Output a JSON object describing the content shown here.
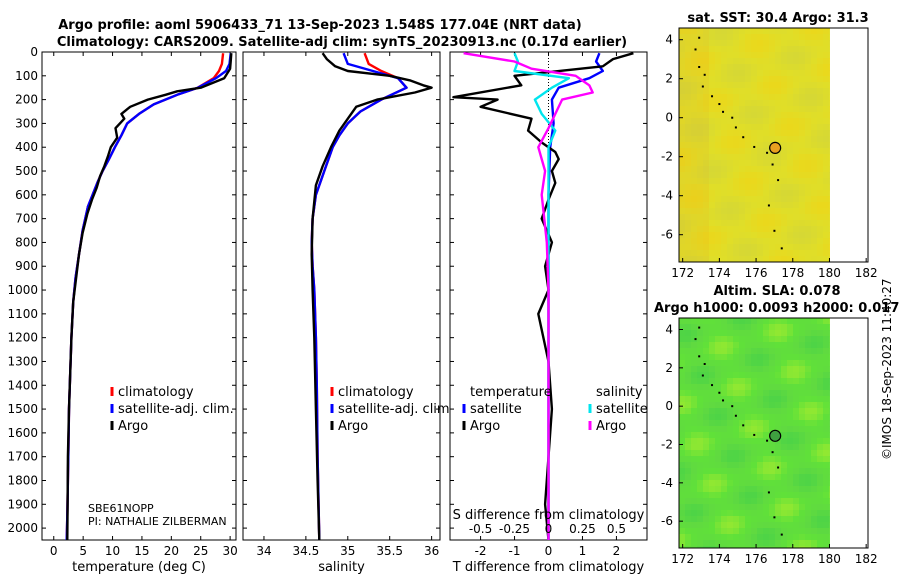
{
  "title": {
    "line1": "Argo profile: aoml 5906433_71 13-Sep-2023 1.548S 177.04E (NRT data)",
    "line2": "Climatology: CARS2009. Satellite-adj clim: synTS_20230913.nc (0.17d earlier)"
  },
  "colors": {
    "climatology": "#ff0000",
    "satellite_adj": "#0000ff",
    "argo": "#000000",
    "satellite_sal": "#00e5ee",
    "argo_sal": "#ff00ff",
    "sst_field": "#e0e020",
    "sla_field": "#66e03a"
  },
  "watermark": "©IMOS 18-Sep-2023 11:40:27",
  "chart_data": [
    {
      "type": "line",
      "name": "temperature-profile",
      "xlabel": "temperature (deg C)",
      "ylabel": "",
      "xlim": [
        -2,
        31
      ],
      "ylim": [
        0,
        2050
      ],
      "y_reversed": true,
      "xticks": [
        0,
        5,
        10,
        15,
        20,
        25,
        30
      ],
      "yticks": [
        0,
        100,
        200,
        300,
        400,
        500,
        600,
        700,
        800,
        900,
        1000,
        1100,
        1200,
        1300,
        1400,
        1500,
        1600,
        1700,
        1800,
        1900,
        2000
      ],
      "legend": [
        "climatology",
        "satellite-adj. clim.",
        "Argo"
      ],
      "annotation": [
        "SBE61NOPP",
        "PI: NATHALIE ZILBERMAN"
      ],
      "series": [
        {
          "name": "climatology",
          "color_key": "climatology",
          "x": [
            28.8,
            28.6,
            28.1,
            27.2,
            24.5,
            21.0,
            17.0,
            14.5,
            12.5,
            11.5,
            10.4,
            9.4,
            8.3,
            7.4,
            6.6,
            5.8,
            4.9,
            4.3,
            3.7,
            3.3,
            3.0,
            2.8,
            2.6,
            2.5,
            2.4,
            2.3,
            2.2
          ],
          "y": [
            5,
            50,
            80,
            110,
            150,
            180,
            220,
            260,
            300,
            350,
            400,
            450,
            500,
            550,
            600,
            650,
            750,
            850,
            950,
            1050,
            1200,
            1350,
            1500,
            1650,
            1800,
            1950,
            2050
          ]
        },
        {
          "name": "satellite-adj. clim.",
          "color_key": "satellite_adj",
          "x": [
            30.1,
            29.9,
            29.3,
            27.6,
            24.5,
            21.0,
            17.0,
            14.5,
            12.5,
            11.5,
            10.4,
            9.4,
            8.3,
            7.4,
            6.6,
            5.8,
            4.9,
            4.3,
            3.7,
            3.3,
            3.0,
            2.8,
            2.6,
            2.5,
            2.4,
            2.3,
            2.2
          ],
          "y": [
            5,
            50,
            80,
            110,
            150,
            180,
            220,
            260,
            300,
            350,
            400,
            450,
            500,
            550,
            600,
            650,
            750,
            850,
            950,
            1050,
            1200,
            1350,
            1500,
            1650,
            1800,
            1950,
            2050
          ]
        },
        {
          "name": "Argo",
          "color_key": "argo",
          "x": [
            30.2,
            30.1,
            30.0,
            29.0,
            25.0,
            21.0,
            19.0,
            16.0,
            13.0,
            11.5,
            12.0,
            10.5,
            10.8,
            9.7,
            9.2,
            8.6,
            7.9,
            7.3,
            6.5,
            5.7,
            4.9,
            4.3,
            3.8,
            3.3,
            3.0,
            2.8,
            2.6,
            2.4,
            2.35,
            2.3
          ],
          "y": [
            5,
            40,
            70,
            110,
            150,
            165,
            180,
            200,
            230,
            260,
            280,
            320,
            360,
            400,
            440,
            480,
            520,
            570,
            620,
            680,
            760,
            850,
            950,
            1050,
            1200,
            1350,
            1500,
            1700,
            1900,
            2050
          ]
        }
      ]
    },
    {
      "type": "line",
      "name": "salinity-profile",
      "xlabel": "salinity",
      "xlim": [
        33.75,
        36.1
      ],
      "ylim": [
        0,
        2050
      ],
      "y_reversed": true,
      "xticks": [
        34,
        34.5,
        35,
        35.5,
        36
      ],
      "legend": [
        "climatology",
        "satellite-adj. clim.",
        "Argo"
      ],
      "series": [
        {
          "name": "climatology",
          "color_key": "climatology",
          "x": [
            35.2,
            35.25,
            35.4,
            35.6,
            35.7,
            35.4,
            35.15,
            35.0,
            34.9,
            34.82,
            34.72,
            34.62,
            34.58,
            34.57,
            34.58,
            34.6,
            34.62,
            34.63,
            34.64,
            34.66
          ],
          "y": [
            5,
            50,
            80,
            110,
            150,
            200,
            250,
            300,
            350,
            400,
            500,
            600,
            700,
            800,
            900,
            1000,
            1200,
            1400,
            1700,
            2050
          ]
        },
        {
          "name": "satellite-adj. clim.",
          "color_key": "satellite_adj",
          "x": [
            34.95,
            35.0,
            35.3,
            35.6,
            35.7,
            35.4,
            35.15,
            35.0,
            34.9,
            34.82,
            34.72,
            34.62,
            34.58,
            34.57,
            34.58,
            34.6,
            34.62,
            34.63,
            34.64,
            34.66
          ],
          "y": [
            5,
            50,
            80,
            110,
            150,
            200,
            250,
            300,
            350,
            400,
            500,
            600,
            700,
            800,
            900,
            1000,
            1200,
            1400,
            1700,
            2050
          ]
        },
        {
          "name": "Argo",
          "color_key": "argo",
          "x": [
            34.7,
            34.75,
            34.85,
            35.0,
            35.5,
            35.75,
            35.9,
            36.0,
            35.8,
            35.35,
            35.1,
            35.0,
            34.9,
            34.8,
            34.7,
            34.62,
            34.58,
            34.57,
            34.58,
            34.6,
            34.62,
            34.64,
            34.66
          ],
          "y": [
            5,
            30,
            60,
            80,
            100,
            120,
            140,
            150,
            170,
            200,
            230,
            280,
            330,
            400,
            480,
            560,
            700,
            850,
            1000,
            1200,
            1500,
            1800,
            2050
          ]
        }
      ]
    },
    {
      "type": "line",
      "name": "difference-profile",
      "xlabel": "T difference from climatology",
      "xlabel_top": "S difference from climatology",
      "xlim": [
        -2.9,
        2.9
      ],
      "ylim": [
        0,
        2050
      ],
      "y_reversed": true,
      "xticks": [
        -2,
        -1,
        0,
        1,
        2
      ],
      "sticks_labels": [
        "-0.5",
        "-0.25",
        "0",
        "0.25",
        "0.5"
      ],
      "s_scale": 4,
      "legend_temperature": {
        "heading": "temperature",
        "entries": [
          "satellite",
          "Argo"
        ]
      },
      "legend_salinity": {
        "heading": "salinity",
        "entries": [
          "satellite",
          "Argo"
        ]
      },
      "series": [
        {
          "name": "T satellite",
          "color_key": "satellite_adj",
          "x": [
            1.5,
            1.4,
            1.6,
            1.2,
            0.3,
            0.1,
            0.15,
            0.05,
            0.0,
            0.0,
            0.0,
            0.0
          ],
          "y": [
            5,
            40,
            80,
            110,
            150,
            200,
            300,
            400,
            600,
            1000,
            1500,
            2050
          ]
        },
        {
          "name": "T Argo",
          "color_key": "argo",
          "x": [
            2.5,
            1.9,
            1.6,
            -1.0,
            -0.8,
            -2.8,
            -1.5,
            -2.0,
            -0.5,
            -0.6,
            -0.2,
            0.2,
            0.3,
            0.1,
            0.2,
            0.0,
            -0.2,
            0.1,
            -0.1,
            0.0,
            -0.3,
            0.0,
            0.1,
            0.0,
            -0.1,
            0.0
          ],
          "y": [
            5,
            30,
            60,
            100,
            140,
            190,
            200,
            230,
            280,
            330,
            380,
            420,
            450,
            500,
            550,
            620,
            700,
            800,
            900,
            1000,
            1100,
            1300,
            1500,
            1700,
            1900,
            2050
          ]
        },
        {
          "name": "S satellite",
          "color_key": "satellite_sal",
          "x": [
            -1.0,
            -0.9,
            -1.0,
            0.6,
            0.1,
            -0.4,
            -0.2,
            0.2,
            0.0,
            0.0,
            0.0,
            0.0,
            0.0
          ],
          "y": [
            5,
            40,
            80,
            110,
            150,
            200,
            260,
            330,
            400,
            600,
            1000,
            1500,
            2050
          ]
        },
        {
          "name": "S Argo",
          "color_key": "argo_sal",
          "x": [
            -2.5,
            -1.0,
            -0.5,
            0.8,
            1.0,
            1.2,
            1.3,
            0.4,
            0.2,
            0.0,
            -0.3,
            -0.1,
            -0.2,
            -0.05,
            0.0,
            0.0,
            0.0,
            0.0
          ],
          "y": [
            5,
            40,
            70,
            100,
            120,
            140,
            170,
            200,
            260,
            320,
            400,
            500,
            600,
            800,
            1000,
            1300,
            1600,
            2050
          ]
        }
      ]
    },
    {
      "type": "heatmap",
      "name": "sst-map",
      "title": "sat. SST: 30.4 Argo: 31.3",
      "xlim": [
        171.8,
        182.1
      ],
      "ylim": [
        -7.4,
        4.6
      ],
      "xticks": [
        172,
        174,
        176,
        178,
        180,
        182
      ],
      "yticks": [
        4,
        2,
        0,
        -2,
        -4,
        -6
      ],
      "field_xmax": 180,
      "marker": {
        "x": 177.04,
        "y": -1.548
      },
      "track": [
        [
          172.9,
          4.1
        ],
        [
          172.7,
          3.5
        ],
        [
          172.9,
          2.6
        ],
        [
          173.2,
          2.2
        ],
        [
          173.1,
          1.6
        ],
        [
          173.6,
          1.1
        ],
        [
          174.0,
          0.7
        ],
        [
          174.2,
          0.3
        ],
        [
          174.7,
          0.0
        ],
        [
          174.9,
          -0.5
        ],
        [
          175.3,
          -1.0
        ],
        [
          175.9,
          -1.5
        ],
        [
          176.6,
          -1.8
        ],
        [
          176.9,
          -2.4
        ],
        [
          177.2,
          -3.2
        ],
        [
          176.7,
          -4.5
        ],
        [
          177.0,
          -5.8
        ],
        [
          177.4,
          -6.7
        ]
      ]
    },
    {
      "type": "heatmap",
      "name": "sla-map",
      "title_line1": "Altim. SLA: 0.078",
      "title_line2": "Argo h1000: 0.0093 h2000: 0.017",
      "xlim": [
        171.8,
        182.1
      ],
      "ylim": [
        -7.4,
        4.6
      ],
      "xticks": [
        172,
        174,
        176,
        178,
        180,
        182
      ],
      "yticks": [
        4,
        2,
        0,
        -2,
        -4,
        -6
      ],
      "field_xmax": 180,
      "marker": {
        "x": 177.04,
        "y": -1.548
      },
      "track": [
        [
          172.9,
          4.1
        ],
        [
          172.7,
          3.5
        ],
        [
          172.9,
          2.6
        ],
        [
          173.2,
          2.2
        ],
        [
          173.1,
          1.6
        ],
        [
          173.6,
          1.1
        ],
        [
          174.0,
          0.7
        ],
        [
          174.2,
          0.3
        ],
        [
          174.7,
          0.0
        ],
        [
          174.9,
          -0.5
        ],
        [
          175.3,
          -1.0
        ],
        [
          175.9,
          -1.5
        ],
        [
          176.6,
          -1.8
        ],
        [
          176.9,
          -2.4
        ],
        [
          177.2,
          -3.2
        ],
        [
          176.7,
          -4.5
        ],
        [
          177.0,
          -5.8
        ],
        [
          177.4,
          -6.7
        ]
      ]
    }
  ]
}
